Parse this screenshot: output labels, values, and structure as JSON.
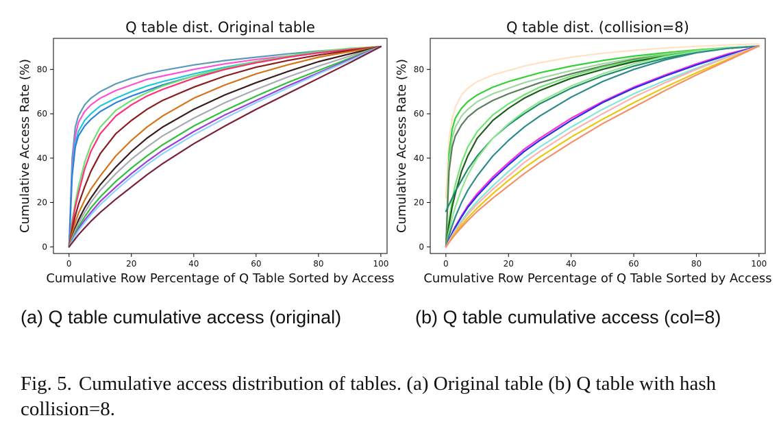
{
  "figure": {
    "caption_label": "Fig. 5.",
    "caption_text": "Cumulative access distribution of tables. (a) Original table (b) Q table with hash collision=8."
  },
  "subcaptions": {
    "a": "(a) Q table cumulative access (original)",
    "b": "(b) Q table cumulative access (col=8)"
  },
  "chart_data": [
    {
      "type": "line",
      "title": "Q table dist. Original table",
      "xlabel": "Cumulative Row Percentage of Q Table Sorted by Access",
      "ylabel": "Cumulative Access Rate (%)",
      "xlim": [
        -5,
        102
      ],
      "ylim": [
        -3,
        94
      ],
      "xticks": [
        0,
        20,
        40,
        60,
        80,
        100
      ],
      "yticks": [
        0,
        20,
        40,
        60,
        80
      ],
      "grid": false,
      "legend": "none",
      "x": [
        0,
        1,
        2,
        3,
        5,
        7,
        10,
        15,
        20,
        25,
        30,
        40,
        50,
        60,
        70,
        80,
        90,
        100
      ],
      "series": [
        {
          "color": "#5b9bb5",
          "values": [
            0,
            40,
            54,
            59,
            64,
            67,
            70,
            73.5,
            76,
            78,
            79.5,
            82,
            84,
            85.5,
            87,
            88.3,
            89.3,
            90.3
          ]
        },
        {
          "color": "#ff4fd2",
          "values": [
            0,
            36,
            50,
            56,
            61,
            64,
            67,
            70.5,
            73,
            75.5,
            77,
            80,
            82.5,
            84.5,
            86,
            87.5,
            89,
            90.3
          ]
        },
        {
          "color": "#20c7d8",
          "values": [
            0,
            34,
            47,
            52,
            57,
            60,
            63.5,
            67,
            70,
            72.5,
            74.5,
            78,
            81,
            83.5,
            85.5,
            87.5,
            89,
            90.3
          ]
        },
        {
          "color": "#2d7fe0",
          "values": [
            0,
            32,
            45,
            50,
            54.5,
            57.5,
            61,
            65,
            68,
            70.5,
            73,
            77,
            80,
            83,
            85.5,
            87.5,
            89,
            90.3
          ]
        },
        {
          "color": "#6de06d",
          "values": [
            0,
            12,
            20,
            27,
            38,
            46,
            54,
            61.5,
            66,
            69.5,
            72.5,
            77,
            80.5,
            83.5,
            86,
            88,
            89.5,
            90.3
          ]
        },
        {
          "color": "#ff2d7a",
          "values": [
            0,
            10,
            18,
            24,
            35,
            43,
            51,
            59,
            64,
            68,
            71,
            76,
            80,
            83,
            85.5,
            87.5,
            89,
            90.3
          ]
        },
        {
          "color": "#8b1c1c",
          "values": [
            0,
            8,
            14,
            19,
            27,
            34,
            42,
            51,
            57,
            62,
            66,
            72,
            77,
            81,
            84,
            86.5,
            88.5,
            90.3
          ]
        },
        {
          "color": "#d4731a",
          "values": [
            0,
            6,
            11,
            15,
            21,
            26,
            32,
            41,
            48,
            54,
            59,
            67,
            73,
            78,
            82,
            85.5,
            88,
            90.3
          ]
        },
        {
          "color": "#3a1b1b",
          "values": [
            0,
            4.5,
            8.5,
            12,
            17.5,
            22,
            28,
            36,
            43,
            49,
            54,
            62,
            68.5,
            74,
            79,
            83.5,
            87,
            90.3
          ]
        },
        {
          "color": "#a9a9b5",
          "values": [
            0,
            4,
            7.5,
            10.5,
            15.5,
            20,
            25.5,
            33,
            39.5,
            45,
            50,
            58,
            65,
            71,
            76.5,
            81.5,
            86,
            90.3
          ]
        },
        {
          "color": "#2fbf3a",
          "values": [
            0,
            3.2,
            6.2,
            9,
            13.5,
            17.5,
            22.5,
            29.5,
            35.5,
            41,
            46,
            54.5,
            61.5,
            68,
            74,
            79.5,
            85,
            90.3
          ]
        },
        {
          "color": "#9a40d8",
          "values": [
            0,
            2.8,
            5.5,
            8,
            12,
            15.5,
            20.5,
            27,
            33,
            38.5,
            43.5,
            52,
            59.5,
            66,
            72.5,
            78.5,
            84.5,
            90.3
          ]
        },
        {
          "color": "#8fd0ff",
          "values": [
            0,
            2.5,
            5,
            7.2,
            11,
            14.5,
            19,
            25.5,
            31.5,
            37,
            42,
            50.5,
            58,
            65,
            71.5,
            78,
            84,
            90.3
          ]
        },
        {
          "color": "#7a1f35",
          "values": [
            0,
            1.8,
            3.6,
            5.4,
            8.5,
            11.5,
            15.5,
            21.5,
            27,
            32.5,
            37.5,
            46.5,
            54.5,
            62,
            69,
            76,
            83,
            90.3
          ]
        }
      ]
    },
    {
      "type": "line",
      "title": "Q table dist. (collision=8)",
      "xlabel": "Cumulative Row Percentage of Q Table Sorted by Access",
      "ylabel": "Cumulative Access Rate (%)",
      "xlim": [
        -5,
        102
      ],
      "ylim": [
        -3,
        94
      ],
      "xticks": [
        0,
        20,
        40,
        60,
        80,
        100
      ],
      "yticks": [
        0,
        20,
        40,
        60,
        80
      ],
      "grid": false,
      "legend": "none",
      "x": [
        0,
        1,
        2,
        3,
        5,
        7,
        10,
        15,
        20,
        25,
        30,
        40,
        50,
        60,
        70,
        80,
        90,
        100
      ],
      "series": [
        {
          "color": "#ffe2c2",
          "values": [
            22,
            48,
            58,
            63,
            68.5,
            71.5,
            74.5,
            77.5,
            79.5,
            81.5,
            83,
            85.5,
            87.3,
            88.6,
            89.6,
            90.4,
            91,
            91.5
          ]
        },
        {
          "color": "#35d035",
          "values": [
            0,
            42,
            53,
            58,
            62.5,
            65.5,
            68.5,
            72,
            74.5,
            76.5,
            78.5,
            81.5,
            84,
            86,
            87.5,
            88.8,
            89.8,
            90.5
          ]
        },
        {
          "color": "#9fd89f",
          "values": [
            0,
            38,
            49,
            54,
            59,
            62,
            65.5,
            69,
            71.5,
            74,
            76,
            79.5,
            82.5,
            85,
            87,
            88.5,
            89.6,
            90.5
          ]
        },
        {
          "color": "#5a7d5a",
          "values": [
            0,
            34,
            45,
            50,
            55,
            58.5,
            62,
            66,
            69,
            71.5,
            74,
            78,
            81.5,
            84.5,
            86.5,
            88.3,
            89.5,
            90.5
          ]
        },
        {
          "color": "#6ee56e",
          "values": [
            0,
            12,
            21,
            28,
            38,
            45,
            52,
            59.5,
            64.5,
            68.5,
            72,
            77,
            81,
            84,
            86.5,
            88.5,
            89.8,
            90.5
          ]
        },
        {
          "color": "#1f5a1f",
          "values": [
            0,
            10,
            18,
            24,
            34,
            41,
            49,
            57,
            62.5,
            67,
            70.5,
            76,
            80,
            83.5,
            86,
            88.2,
            89.6,
            90.5
          ]
        },
        {
          "color": "#1f8a6e",
          "values": [
            16,
            19,
            22,
            25,
            30,
            35,
            41,
            49,
            55,
            60,
            64.5,
            71.5,
            77,
            81.5,
            85,
            87.8,
            89.5,
            90.5
          ]
        },
        {
          "color": "#8fe88f",
          "values": [
            0,
            7,
            13,
            18,
            26,
            32.5,
            40,
            49,
            55.5,
            61,
            65.5,
            72.5,
            78,
            82.5,
            85.8,
            88.2,
            89.7,
            90.5
          ]
        },
        {
          "color": "#2c8a8a",
          "values": [
            0,
            5,
            9.5,
            13.5,
            20,
            25.5,
            32,
            41,
            48,
            54,
            59,
            67.5,
            74.5,
            80,
            84.3,
            87.5,
            89.5,
            90.5
          ]
        },
        {
          "color": "#ff2dd8",
          "values": [
            0,
            3.2,
            6.3,
            9.2,
            14,
            18.5,
            24,
            31.5,
            38,
            44,
            49,
            58,
            65.5,
            72,
            77.5,
            82.5,
            87,
            90.5
          ]
        },
        {
          "color": "#2030e8",
          "values": [
            0,
            3,
            6,
            8.8,
            13.5,
            17.8,
            23,
            30.5,
            37,
            43,
            48,
            57,
            65,
            71.5,
            77,
            82,
            86.5,
            90.5
          ]
        },
        {
          "color": "#7fe8d8",
          "values": [
            0,
            2.6,
            5.2,
            7.6,
            11.8,
            15.6,
            20.5,
            27.5,
            34,
            40,
            45,
            54,
            62,
            69,
            75,
            80.5,
            85.8,
            90.5
          ]
        },
        {
          "color": "#ffb0b0",
          "values": [
            0,
            2.4,
            4.8,
            7,
            11,
            14.6,
            19.3,
            26,
            32,
            38,
            43,
            52,
            60,
            67.5,
            74,
            80,
            85.5,
            90.5
          ]
        },
        {
          "color": "#e8c80a",
          "values": [
            0,
            2.1,
            4.2,
            6.2,
            9.8,
            13,
            17.5,
            24,
            30,
            35.5,
            40.5,
            49.5,
            57.5,
            65,
            72,
            78.5,
            84.5,
            90.5
          ]
        },
        {
          "color": "#f5906a",
          "values": [
            0,
            1.9,
            3.8,
            5.6,
            8.8,
            11.8,
            16,
            22,
            27.5,
            33,
            38,
            47,
            55.5,
            63,
            70.5,
            77.5,
            84,
            90.5
          ]
        }
      ]
    }
  ]
}
